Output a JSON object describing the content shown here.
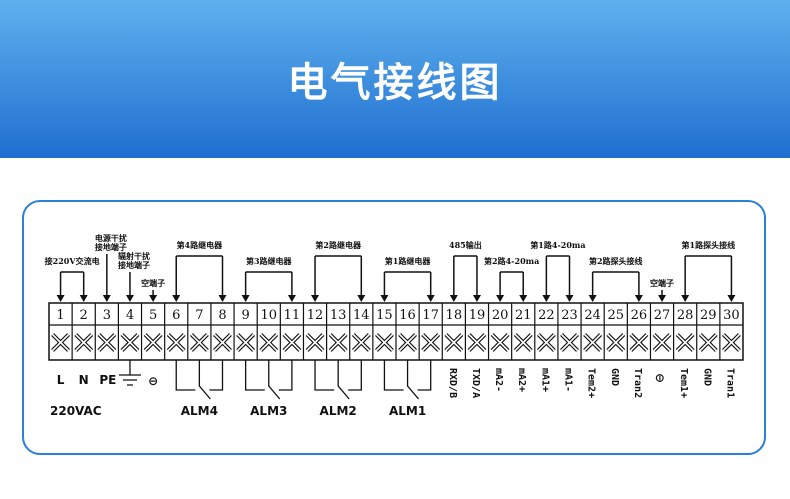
{
  "header": {
    "title": "电气接线图",
    "gradient": [
      "#5fb0ee",
      "#1f6fd0"
    ],
    "panel_border": "#2a7fd6"
  },
  "terminals": [
    "1",
    "2",
    "3",
    "4",
    "5",
    "6",
    "7",
    "8",
    "9",
    "10",
    "11",
    "12",
    "13",
    "14",
    "15",
    "16",
    "17",
    "18",
    "19",
    "20",
    "21",
    "22",
    "23",
    "24",
    "25",
    "26",
    "27",
    "28",
    "29",
    "30"
  ],
  "groups": [
    {
      "from": 1,
      "to": 2,
      "label": "接220V交流电",
      "level": "low"
    },
    {
      "from": 6,
      "to": 8,
      "label": "第4路继电器",
      "level": "high"
    },
    {
      "from": 9,
      "to": 11,
      "label": "第3路继电器",
      "level": "low"
    },
    {
      "from": 12,
      "to": 14,
      "label": "第2路继电器",
      "level": "high"
    },
    {
      "from": 15,
      "to": 17,
      "label": "第1路继电器",
      "level": "low"
    },
    {
      "from": 18,
      "to": 19,
      "label": "485输出",
      "level": "high"
    },
    {
      "from": 20,
      "to": 21,
      "label": "第2路4-20ma",
      "level": "low"
    },
    {
      "from": 22,
      "to": 23,
      "label": "第1路4-20ma",
      "level": "high"
    },
    {
      "from": 24,
      "to": 26,
      "label": "第2路探头接线",
      "level": "low"
    },
    {
      "from": 28,
      "to": 30,
      "label": "第1路探头接线",
      "level": "high"
    }
  ],
  "singles": [
    {
      "at": 3,
      "lines": [
        "电源干扰",
        "接地端子"
      ]
    },
    {
      "at": 4,
      "lines": [
        "辐射干扰",
        "接地端子"
      ]
    },
    {
      "at": 5,
      "lines": [
        "空端子"
      ]
    },
    {
      "at": 27,
      "lines": [
        "空端子"
      ]
    }
  ],
  "power": {
    "L": "L",
    "N": "N",
    "PE": "PE",
    "empty_symbol": "⊖",
    "voltage": "220VAC"
  },
  "relays": [
    {
      "at": 6,
      "label": "ALM4"
    },
    {
      "at": 9,
      "label": "ALM3"
    },
    {
      "at": 12,
      "label": "ALM2"
    },
    {
      "at": 15,
      "label": "ALM1"
    }
  ],
  "bottom_labels": [
    {
      "at": 18,
      "text": "RXD/B"
    },
    {
      "at": 19,
      "text": "TXD/A"
    },
    {
      "at": 20,
      "text": "mA2-"
    },
    {
      "at": 21,
      "text": "mA2+"
    },
    {
      "at": 22,
      "text": "mA1+"
    },
    {
      "at": 23,
      "text": "mA1-"
    },
    {
      "at": 24,
      "text": "Tem2+"
    },
    {
      "at": 25,
      "text": "GND"
    },
    {
      "at": 26,
      "text": "Tran2"
    },
    {
      "at": 27,
      "text": "⊖"
    },
    {
      "at": 28,
      "text": "Tem1+"
    },
    {
      "at": 29,
      "text": "GND"
    },
    {
      "at": 30,
      "text": "Tran1"
    }
  ]
}
